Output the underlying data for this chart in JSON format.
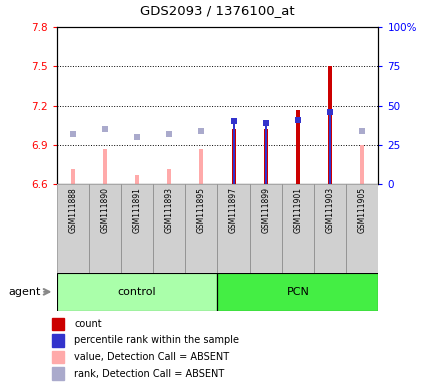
{
  "title": "GDS2093 / 1376100_at",
  "samples": [
    "GSM111888",
    "GSM111890",
    "GSM111891",
    "GSM111893",
    "GSM111895",
    "GSM111897",
    "GSM111899",
    "GSM111901",
    "GSM111903",
    "GSM111905"
  ],
  "ylim_left": [
    6.6,
    7.8
  ],
  "ylim_right": [
    0,
    100
  ],
  "yticks_left": [
    6.6,
    6.9,
    7.2,
    7.5,
    7.8
  ],
  "yticks_right": [
    0,
    25,
    50,
    75,
    100
  ],
  "ytick_labels_left": [
    "6.6",
    "6.9",
    "7.2",
    "7.5",
    "7.8"
  ],
  "ytick_labels_right": [
    "0",
    "25",
    "50",
    "75",
    "100%"
  ],
  "dotted_lines": [
    6.9,
    7.2,
    7.5
  ],
  "bar_values": [
    6.72,
    6.87,
    6.67,
    6.72,
    6.87,
    7.02,
    7.02,
    7.17,
    7.5,
    6.9
  ],
  "bar_is_absent": [
    true,
    true,
    true,
    true,
    true,
    false,
    false,
    false,
    false,
    true
  ],
  "rank_values": [
    32,
    35,
    30,
    32,
    34,
    40,
    39,
    41,
    46,
    34
  ],
  "rank_is_absent": [
    true,
    true,
    true,
    true,
    true,
    false,
    false,
    false,
    false,
    true
  ],
  "percentile_bar_tops": [
    null,
    null,
    null,
    null,
    null,
    40,
    39,
    null,
    46,
    null
  ],
  "color_count": "#cc0000",
  "color_rank": "#3333cc",
  "color_absent_bar": "#ffaaaa",
  "color_absent_rank": "#aaaacc",
  "control_bg": "#aaffaa",
  "pcn_bg": "#44ee44",
  "bar_width": 0.12,
  "blue_bar_width": 0.06,
  "legend_items": [
    "count",
    "percentile rank within the sample",
    "value, Detection Call = ABSENT",
    "rank, Detection Call = ABSENT"
  ],
  "legend_colors": [
    "#cc0000",
    "#3333cc",
    "#ffaaaa",
    "#aaaacc"
  ]
}
